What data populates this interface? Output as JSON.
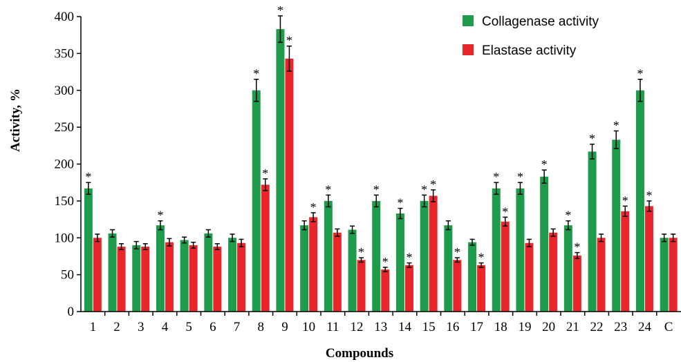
{
  "chart_data": {
    "type": "bar",
    "xlabel": "Compounds",
    "ylabel": "Activity, %",
    "ylim": [
      0,
      400
    ],
    "yticks": [
      0,
      50,
      100,
      150,
      200,
      250,
      300,
      350,
      400
    ],
    "grid": false,
    "legend_position": "top-right",
    "categories": [
      "1",
      "2",
      "3",
      "4",
      "5",
      "6",
      "7",
      "8",
      "9",
      "10",
      "11",
      "12",
      "13",
      "14",
      "15",
      "16",
      "17",
      "18",
      "19",
      "20",
      "21",
      "22",
      "23",
      "24",
      "C"
    ],
    "series": [
      {
        "name": "Collagenase activity",
        "color": "#1e9b4b",
        "values": [
          167,
          106,
          90,
          117,
          97,
          106,
          100,
          300,
          383,
          117,
          150,
          111,
          150,
          133,
          150,
          117,
          94,
          167,
          167,
          183,
          117,
          217,
          233,
          300,
          100
        ],
        "errors": [
          8,
          5,
          5,
          6,
          4,
          5,
          5,
          15,
          18,
          6,
          8,
          5,
          8,
          7,
          8,
          6,
          4,
          8,
          8,
          9,
          6,
          10,
          12,
          15,
          5
        ],
        "significant": [
          true,
          false,
          false,
          true,
          false,
          false,
          false,
          true,
          true,
          false,
          true,
          false,
          true,
          true,
          true,
          false,
          false,
          true,
          true,
          true,
          true,
          true,
          true,
          true,
          false
        ]
      },
      {
        "name": "Elastase activity",
        "color": "#e8262b",
        "values": [
          100,
          88,
          88,
          94,
          90,
          88,
          93,
          172,
          343,
          128,
          107,
          70,
          57,
          63,
          157,
          70,
          63,
          122,
          93,
          107,
          76,
          100,
          136,
          143,
          100
        ],
        "errors": [
          5,
          4,
          4,
          5,
          4,
          4,
          5,
          8,
          17,
          6,
          5,
          3,
          3,
          3,
          8,
          3,
          3,
          6,
          5,
          5,
          4,
          5,
          7,
          7,
          5
        ],
        "significant": [
          false,
          false,
          false,
          false,
          false,
          false,
          false,
          true,
          true,
          true,
          false,
          true,
          true,
          true,
          true,
          true,
          true,
          true,
          false,
          false,
          true,
          false,
          true,
          true,
          false
        ]
      }
    ],
    "significance_marker": "*"
  }
}
